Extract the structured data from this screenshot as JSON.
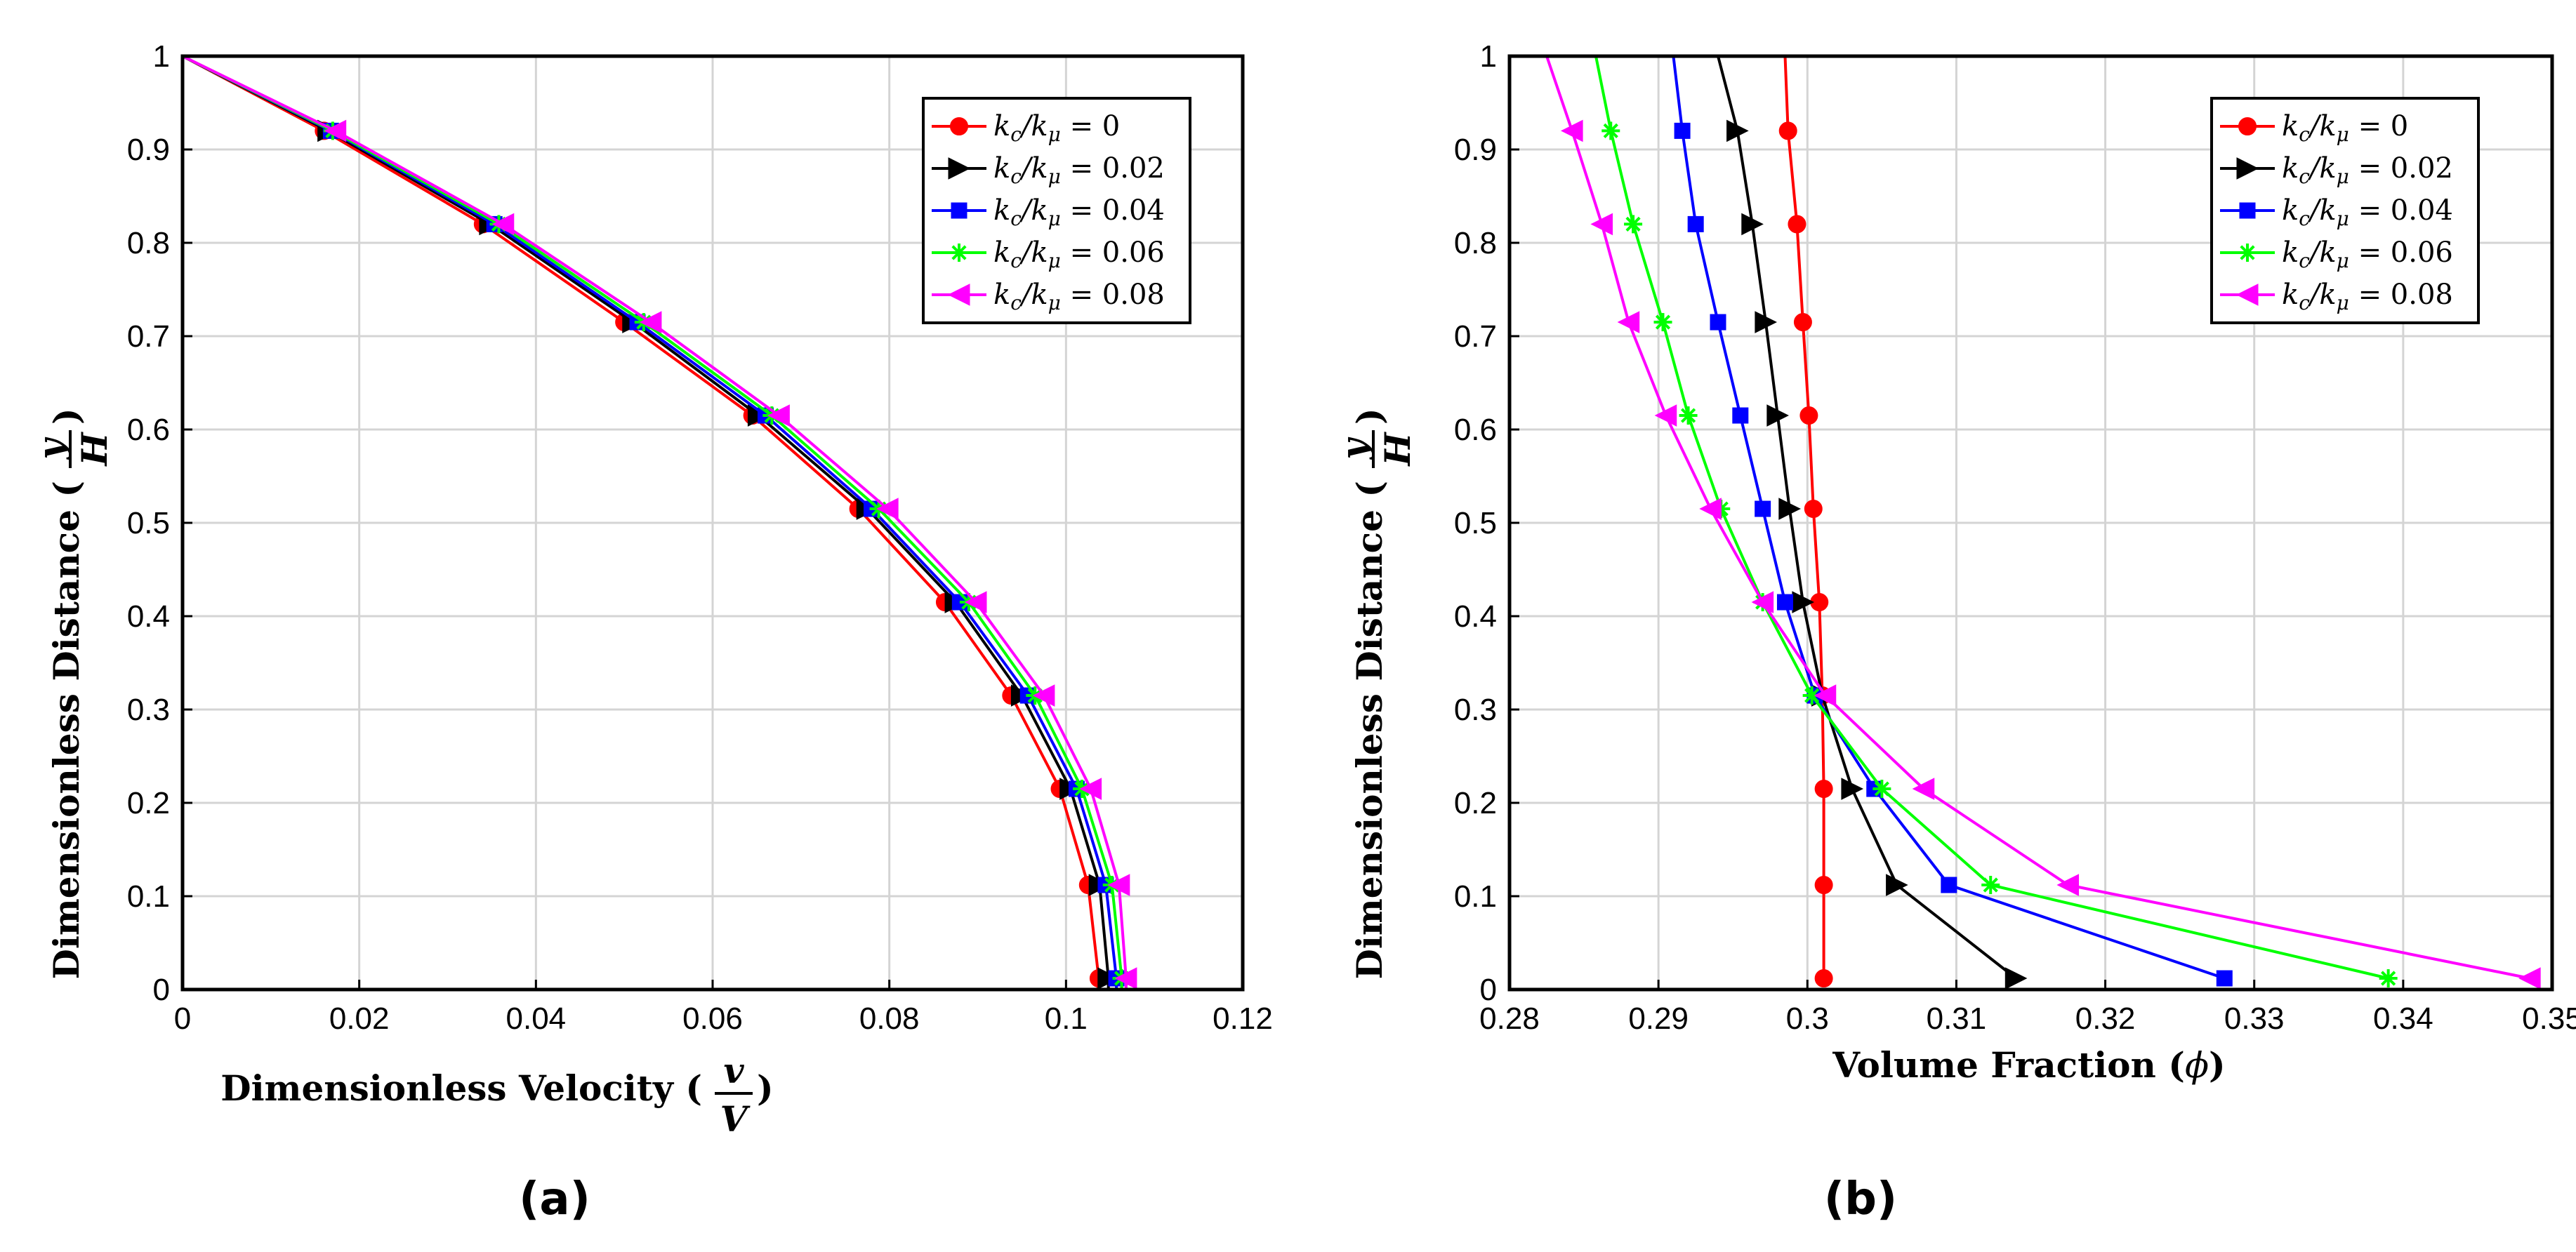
{
  "chart_data": [
    {
      "type": "line",
      "panel_label": "(a)",
      "xlabel": "Dimensionless Velocity (v/V)",
      "ylabel": "Dimensionless Distance (y/H)",
      "xlim": [
        0,
        0.12
      ],
      "ylim": [
        0,
        1
      ],
      "xticks": [
        "0",
        "0.02",
        "0.04",
        "0.06",
        "0.08",
        "0.1",
        "0.12"
      ],
      "yticks": [
        "0",
        "0.1",
        "0.2",
        "0.3",
        "0.4",
        "0.5",
        "0.6",
        "0.7",
        "0.8",
        "0.9",
        "1"
      ],
      "grid": true,
      "legend_position": "top-right",
      "series": [
        {
          "name": "k_c/k_μ = 0",
          "color": "#ff0000",
          "marker": "circle",
          "y": [
            1,
            0.92,
            0.82,
            0.715,
            0.615,
            0.515,
            0.415,
            0.315,
            0.215,
            0.112,
            0.012,
            0
          ],
          "x": [
            0,
            0.016,
            0.034,
            0.05,
            0.0645,
            0.0765,
            0.0863,
            0.0938,
            0.0993,
            0.1025,
            0.1037,
            0.1036
          ]
        },
        {
          "name": "k_c/k_μ = 0.02",
          "color": "#000000",
          "marker": "triangle-right",
          "y": [
            1,
            0.92,
            0.82,
            0.715,
            0.615,
            0.515,
            0.415,
            0.315,
            0.215,
            0.112,
            0.012,
            0
          ],
          "x": [
            0,
            0.0165,
            0.0348,
            0.051,
            0.0652,
            0.0775,
            0.0875,
            0.095,
            0.1005,
            0.1038,
            0.1048,
            0.1048
          ]
        },
        {
          "name": "k_c/k_μ = 0.04",
          "color": "#0000ff",
          "marker": "square",
          "y": [
            1,
            0.92,
            0.82,
            0.715,
            0.615,
            0.515,
            0.415,
            0.315,
            0.215,
            0.112,
            0.012,
            0
          ],
          "x": [
            0,
            0.0168,
            0.0353,
            0.0515,
            0.066,
            0.078,
            0.088,
            0.0957,
            0.1012,
            0.1045,
            0.1057,
            0.1057
          ]
        },
        {
          "name": "k_c/k_μ = 0.06",
          "color": "#00ff00",
          "marker": "star",
          "y": [
            1,
            0.92,
            0.82,
            0.715,
            0.615,
            0.515,
            0.415,
            0.315,
            0.215,
            0.112,
            0.012,
            0
          ],
          "x": [
            0,
            0.017,
            0.0358,
            0.0522,
            0.0667,
            0.0788,
            0.089,
            0.0965,
            0.1018,
            0.1052,
            0.1063,
            0.1063
          ]
        },
        {
          "name": "k_c/k_μ = 0.08",
          "color": "#ff00ff",
          "marker": "triangle-left",
          "y": [
            1,
            0.92,
            0.82,
            0.715,
            0.615,
            0.515,
            0.415,
            0.315,
            0.215,
            0.112,
            0.012,
            0
          ],
          "x": [
            0,
            0.0173,
            0.0363,
            0.053,
            0.0675,
            0.0798,
            0.0898,
            0.0975,
            0.1028,
            0.106,
            0.1068,
            0.1068
          ]
        }
      ]
    },
    {
      "type": "line",
      "panel_label": "(b)",
      "xlabel": "Volume Fraction (ϕ)",
      "ylabel": "Dimensionless Distance (y/H)",
      "xlim": [
        0.28,
        0.35
      ],
      "ylim": [
        0,
        1
      ],
      "xticks": [
        "0.28",
        "0.29",
        "0.3",
        "0.31",
        "0.32",
        "0.33",
        "0.34",
        "0.35"
      ],
      "yticks": [
        "0",
        "0.1",
        "0.2",
        "0.3",
        "0.4",
        "0.5",
        "0.6",
        "0.7",
        "0.8",
        "0.9",
        "1"
      ],
      "grid": true,
      "legend_position": "top-right",
      "series": [
        {
          "name": "k_c/k_μ = 0",
          "color": "#ff0000",
          "marker": "circle",
          "y": [
            1,
            0.92,
            0.82,
            0.715,
            0.615,
            0.515,
            0.415,
            0.315,
            0.215,
            0.112,
            0.012
          ],
          "x": [
            0.2985,
            0.2987,
            0.2993,
            0.2997,
            0.3001,
            0.3004,
            0.3008,
            0.301,
            0.3011,
            0.3011,
            0.3011
          ]
        },
        {
          "name": "k_c/k_μ = 0.02",
          "color": "#000000",
          "marker": "triangle-right",
          "y": [
            1,
            0.92,
            0.82,
            0.715,
            0.615,
            0.515,
            0.415,
            0.315,
            0.215,
            0.112,
            0.012
          ],
          "x": [
            0.294,
            0.2953,
            0.2963,
            0.2972,
            0.298,
            0.2988,
            0.2997,
            0.301,
            0.303,
            0.306,
            0.314
          ]
        },
        {
          "name": "k_c/k_μ = 0.04",
          "color": "#0000ff",
          "marker": "square",
          "y": [
            1,
            0.92,
            0.82,
            0.715,
            0.615,
            0.515,
            0.415,
            0.315,
            0.215,
            0.112,
            0.012
          ],
          "x": [
            0.291,
            0.2916,
            0.2925,
            0.294,
            0.2955,
            0.297,
            0.2985,
            0.3005,
            0.3045,
            0.3095,
            0.328
          ]
        },
        {
          "name": "k_c/k_μ = 0.06",
          "color": "#00ff00",
          "marker": "star",
          "y": [
            1,
            0.92,
            0.82,
            0.715,
            0.615,
            0.515,
            0.415,
            0.315,
            0.215,
            0.112,
            0.012
          ],
          "x": [
            0.2858,
            0.2868,
            0.2883,
            0.2903,
            0.292,
            0.2942,
            0.297,
            0.3003,
            0.305,
            0.3123,
            0.339
          ]
        },
        {
          "name": "k_c/k_μ = 0.08",
          "color": "#ff00ff",
          "marker": "triangle-left",
          "y": [
            1,
            0.92,
            0.82,
            0.715,
            0.615,
            0.515,
            0.415,
            0.315,
            0.215,
            0.112,
            0.012
          ],
          "x": [
            0.2825,
            0.2842,
            0.2862,
            0.288,
            0.2905,
            0.2935,
            0.297,
            0.3012,
            0.3078,
            0.3175,
            0.3485
          ]
        }
      ]
    }
  ]
}
